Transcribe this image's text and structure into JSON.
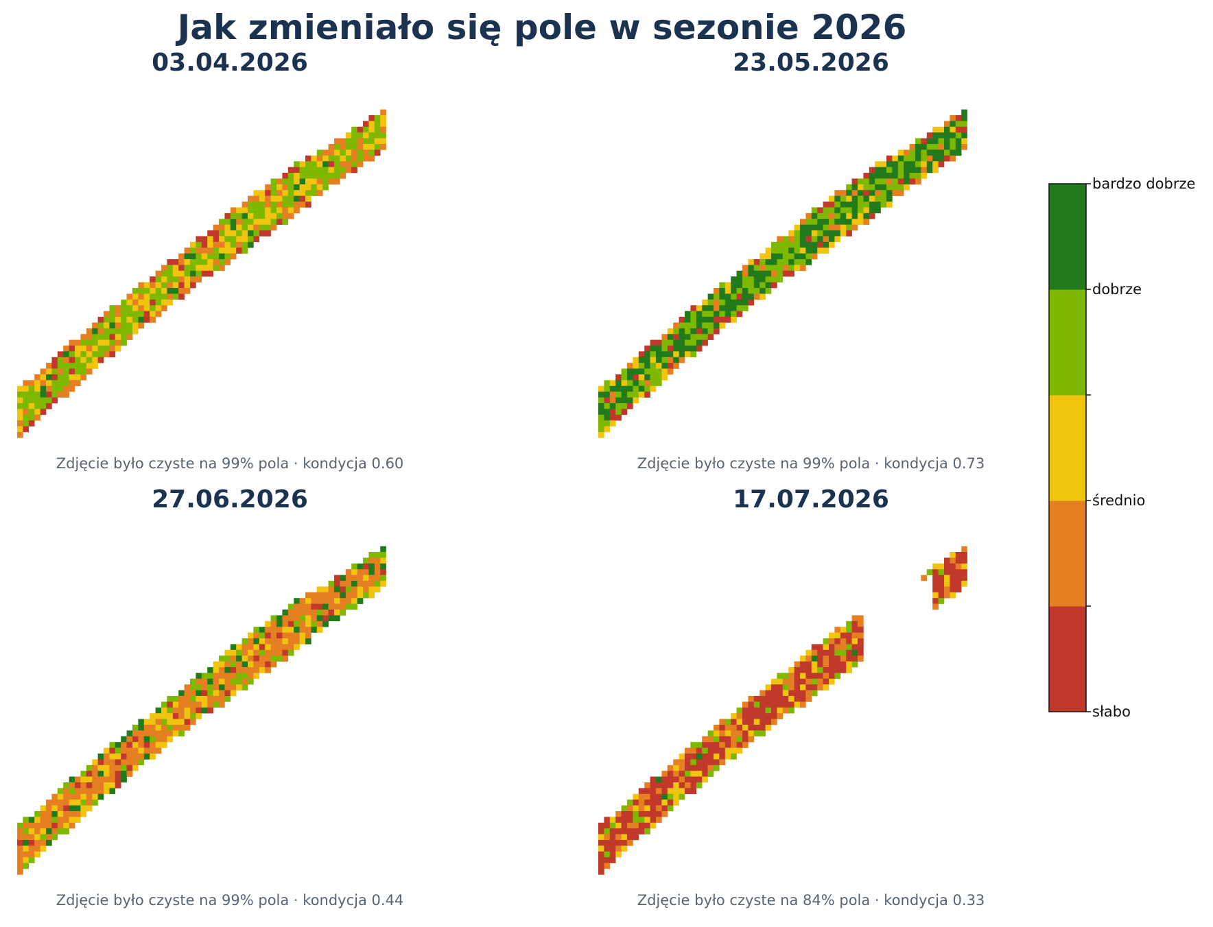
{
  "title": "Jak zmieniało się pole w sezonie 2026",
  "chart_data": {
    "type": "heatmap",
    "title": "Jak zmieniało się pole w sezonie 2026",
    "colorbar": {
      "classes": [
        {
          "name": "słabo",
          "color": "#c0392b"
        },
        {
          "name": "",
          "color": "#e67e22"
        },
        {
          "name": "średnio",
          "color": "#f1c40f"
        },
        {
          "name": "",
          "color": "#7fb800"
        },
        {
          "name": "dobrze",
          "color": "#217a1b"
        }
      ],
      "tick_labels": [
        "słabo",
        "średnio",
        "dobrze",
        "bardzo dobrze"
      ],
      "placement": "right"
    },
    "panels": [
      {
        "date": "03.04.2026",
        "clear_pct": 99,
        "condition": 0.6,
        "caption": "Zdjęcie było czyste na 99% pola · kondycja 0.60",
        "dominant": [
          1,
          2,
          3
        ],
        "edge": [
          0,
          1
        ],
        "weights": [
          0.04,
          0.14,
          0.28,
          0.5,
          0.04
        ]
      },
      {
        "date": "23.05.2026",
        "clear_pct": 99,
        "condition": 0.73,
        "caption": "Zdjęcie było czyste na 99% pola · kondycja 0.73",
        "dominant": [
          3,
          4
        ],
        "edge": [
          0,
          1,
          2
        ],
        "weights": [
          0.06,
          0.06,
          0.08,
          0.35,
          0.45
        ]
      },
      {
        "date": "27.06.2026",
        "clear_pct": 99,
        "condition": 0.44,
        "caption": "Zdjęcie było czyste na 99% pola · kondycja 0.44",
        "dominant": [
          0,
          1,
          2
        ],
        "edge": [
          2,
          3,
          4
        ],
        "weights": [
          0.12,
          0.58,
          0.14,
          0.12,
          0.04
        ]
      },
      {
        "date": "17.07.2026",
        "clear_pct": 84,
        "condition": 0.33,
        "caption": "Zdjęcie było czyste na 84% pola · kondycja 0.33",
        "dominant": [
          0,
          1
        ],
        "edge": [
          1,
          2,
          3
        ],
        "weights": [
          0.66,
          0.16,
          0.1,
          0.07,
          0.01
        ]
      }
    ]
  }
}
